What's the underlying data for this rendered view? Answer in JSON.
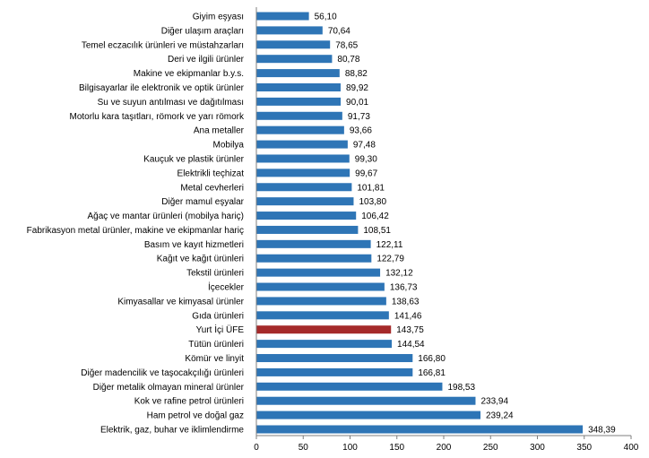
{
  "chart_data": {
    "type": "bar",
    "orientation": "horizontal",
    "categories": [
      "Giyim eşyası",
      "Diğer ulaşım araçları",
      "Temel eczacılık ürünleri ve müstahzarları",
      "Deri ve ilgili ürünler",
      "Makine ve ekipmanlar b.y.s.",
      "Bilgisayarlar ile elektronik ve optik ürünler",
      "Su ve suyun antılması ve dağıtılması",
      "Motorlu kara taşıtları, römork ve yarı römork",
      "Ana metaller",
      "Mobilya",
      "Kauçuk ve plastik ürünler",
      "Elektrikli teçhizat",
      "Metal cevherleri",
      "Diğer mamul eşyalar",
      "Ağaç ve mantar ürünleri (mobilya hariç)",
      "Fabrikasyon metal ürünler, makine ve ekipmanlar hariç",
      "Basım ve kayıt hizmetleri",
      "Kağıt ve kağıt ürünleri",
      "Tekstil ürünleri",
      "İçecekler",
      "Kimyasallar ve kimyasal ürünler",
      "Gıda ürünleri",
      "Yurt İçi ÜFE",
      "Tütün ürünleri",
      "Kömür ve linyit",
      "Diğer madencilik ve taşocakçılığı ürünleri",
      "Diğer metalik olmayan mineral ürünler",
      "Kok ve rafine petrol ürünleri",
      "Ham petrol ve doğal gaz",
      "Elektrik, gaz, buhar ve iklimlendirme"
    ],
    "values": [
      56.1,
      70.64,
      78.65,
      80.78,
      88.82,
      89.92,
      90.01,
      91.73,
      93.66,
      97.48,
      99.3,
      99.67,
      101.81,
      103.8,
      106.42,
      108.51,
      122.11,
      122.79,
      132.12,
      136.73,
      138.63,
      141.46,
      143.75,
      144.54,
      166.8,
      166.81,
      198.53,
      233.94,
      239.24,
      348.39
    ],
    "value_labels": [
      "56,10",
      "70,64",
      "78,65",
      "80,78",
      "88,82",
      "89,92",
      "90,01",
      "91,73",
      "93,66",
      "97,48",
      "99,30",
      "99,67",
      "101,81",
      "103,80",
      "106,42",
      "108,51",
      "122,11",
      "122,79",
      "132,12",
      "136,73",
      "138,63",
      "141,46",
      "143,75",
      "144,54",
      "166,80",
      "166,81",
      "198,53",
      "233,94",
      "239,24",
      "348,39"
    ],
    "highlight_category": "Yurt İçi ÜFE",
    "xlim": [
      0,
      400
    ],
    "xticks": [
      "0",
      "50",
      "100",
      "150",
      "200",
      "250",
      "300",
      "350",
      "400"
    ],
    "title": "",
    "xlabel": "",
    "ylabel": "",
    "grid": false,
    "legend": "none",
    "colors": {
      "bar": "#2e75b6",
      "highlight": "#a52a2a",
      "axis": "#7f7f7f",
      "text": "#000000"
    }
  }
}
